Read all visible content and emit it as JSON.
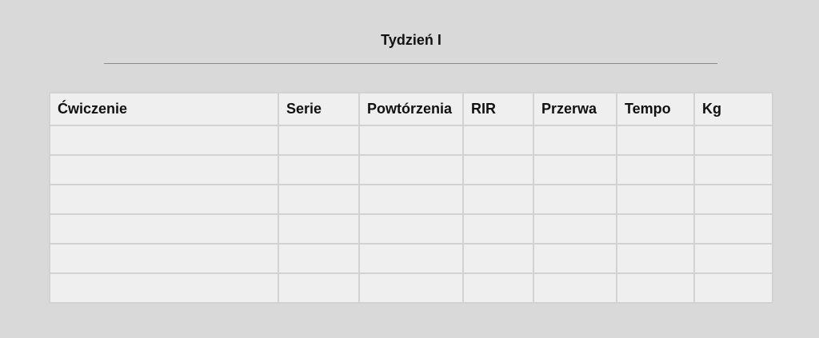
{
  "title": "Tydzień I",
  "table": {
    "headers": [
      "Ćwiczenie",
      "Serie",
      "Powtórzenia",
      "RIR",
      "Przerwa",
      "Tempo",
      "Kg"
    ],
    "rows": [
      [
        "",
        "",
        "",
        "",
        "",
        "",
        ""
      ],
      [
        "",
        "",
        "",
        "",
        "",
        "",
        ""
      ],
      [
        "",
        "",
        "",
        "",
        "",
        "",
        ""
      ],
      [
        "",
        "",
        "",
        "",
        "",
        "",
        ""
      ],
      [
        "",
        "",
        "",
        "",
        "",
        "",
        ""
      ],
      [
        "",
        "",
        "",
        "",
        "",
        "",
        ""
      ]
    ]
  }
}
